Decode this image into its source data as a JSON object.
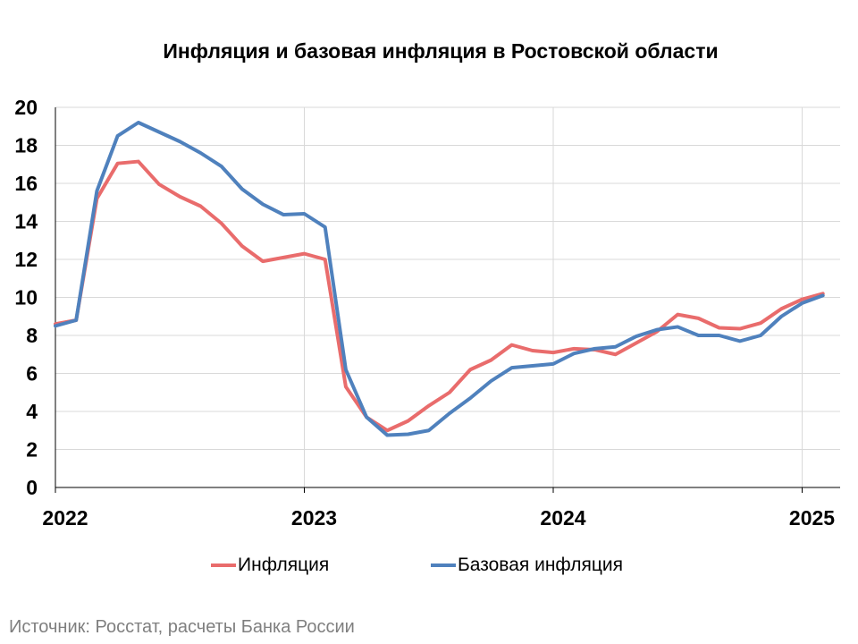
{
  "chart_data": {
    "type": "line",
    "title": "Инфляция и базовая инфляция в Ростовской области",
    "xlabel": "",
    "ylabel": "",
    "ylim": [
      0,
      20
    ],
    "yticks": [
      0,
      2,
      4,
      6,
      8,
      10,
      12,
      14,
      16,
      18,
      20
    ],
    "xlim": [
      "2022-01",
      "2025-02"
    ],
    "xticks": [
      "2022",
      "2023",
      "2024",
      "2025"
    ],
    "grid": true,
    "legend_position": "bottom",
    "x": [
      "2022-01",
      "2022-02",
      "2022-03",
      "2022-04",
      "2022-05",
      "2022-06",
      "2022-07",
      "2022-08",
      "2022-09",
      "2022-10",
      "2022-11",
      "2022-12",
      "2023-01",
      "2023-02",
      "2023-03",
      "2023-04",
      "2023-05",
      "2023-06",
      "2023-07",
      "2023-08",
      "2023-09",
      "2023-10",
      "2023-11",
      "2023-12",
      "2024-01",
      "2024-02",
      "2024-03",
      "2024-04",
      "2024-05",
      "2024-06",
      "2024-07",
      "2024-08",
      "2024-09",
      "2024-10",
      "2024-11",
      "2024-12",
      "2025-01",
      "2025-02"
    ],
    "series": [
      {
        "name": "Инфляция",
        "color": "#e96c6c",
        "values": [
          8.6,
          8.8,
          15.2,
          17.05,
          17.15,
          15.95,
          15.3,
          14.8,
          13.9,
          12.7,
          11.9,
          12.1,
          12.3,
          12.0,
          5.3,
          3.7,
          3.0,
          3.5,
          4.3,
          5.0,
          6.2,
          6.7,
          7.5,
          7.2,
          7.1,
          7.3,
          7.25,
          7.0,
          7.6,
          8.2,
          9.1,
          8.9,
          8.4,
          8.35,
          8.65,
          9.4,
          9.9,
          10.2
        ]
      },
      {
        "name": "Базовая инфляция",
        "color": "#4f81bd",
        "values": [
          8.5,
          8.8,
          15.6,
          18.5,
          19.2,
          18.7,
          18.2,
          17.6,
          16.9,
          15.7,
          14.9,
          14.35,
          14.4,
          13.7,
          6.2,
          3.7,
          2.75,
          2.8,
          3.0,
          3.9,
          4.7,
          5.6,
          6.3,
          6.4,
          6.5,
          7.05,
          7.3,
          7.4,
          7.95,
          8.3,
          8.45,
          8.0,
          8.0,
          7.7,
          8.0,
          9.0,
          9.7,
          10.1
        ]
      }
    ]
  },
  "legend": [
    {
      "label": "Инфляция",
      "color": "#e96c6c"
    },
    {
      "label": "Базовая инфляция",
      "color": "#4f81bd"
    }
  ],
  "source_note": "Источник: Росстат, расчеты Банка России"
}
